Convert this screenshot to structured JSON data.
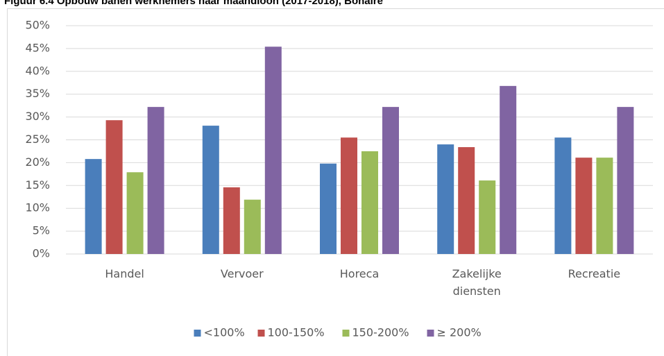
{
  "chart_data": {
    "type": "bar",
    "title": "Figuur 6.4        Opbouw banen werknemers naar maandloon (2017-2018), Bonaire",
    "categories": [
      "Handel",
      "Vervoer",
      "Horeca",
      "Zakelijke diensten",
      "Recreatie"
    ],
    "series": [
      {
        "name": "<100%",
        "color": "#4a7ebb",
        "values": [
          20.8,
          28.1,
          19.8,
          24.0,
          25.5
        ]
      },
      {
        "name": "100-150%",
        "color": "#c0504d",
        "values": [
          29.3,
          14.6,
          25.5,
          23.4,
          21.1
        ]
      },
      {
        "name": "150-200%",
        "color": "#9bbb59",
        "values": [
          17.9,
          11.9,
          22.5,
          16.1,
          21.1
        ]
      },
      {
        "name": "≥ 200%",
        "color": "#8064a2",
        "values": [
          32.2,
          45.4,
          32.2,
          36.8,
          32.2
        ]
      }
    ],
    "ylim": [
      0,
      50
    ],
    "yticks": [
      {
        "value": 0,
        "label": "0%"
      },
      {
        "value": 5,
        "label": "5%"
      },
      {
        "value": 10,
        "label": "10%"
      },
      {
        "value": 15,
        "label": "15%"
      },
      {
        "value": 20,
        "label": "20%"
      },
      {
        "value": 25,
        "label": "25%"
      },
      {
        "value": 30,
        "label": "30%"
      },
      {
        "value": 35,
        "label": "35%"
      },
      {
        "value": 40,
        "label": "40%"
      },
      {
        "value": 45,
        "label": "45%"
      },
      {
        "value": 50,
        "label": "50%"
      }
    ],
    "grid": true,
    "legend": "bottom"
  }
}
